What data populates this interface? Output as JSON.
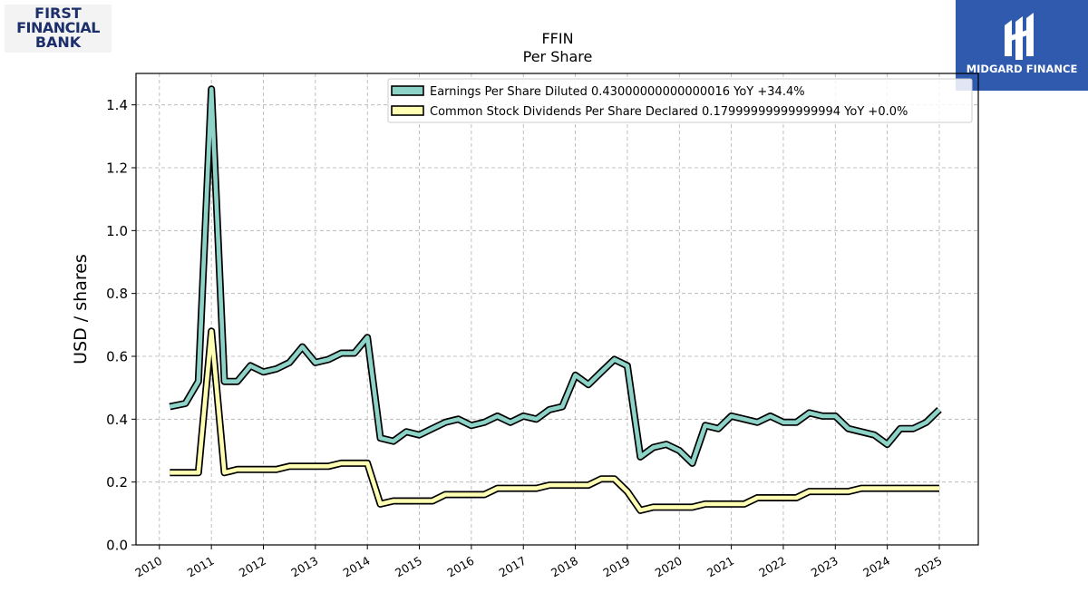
{
  "branding": {
    "left_logo": [
      "FIRST",
      "FINANCIAL",
      "BANK"
    ],
    "right_logo": "MIDGARD FINANCE"
  },
  "chart_data": {
    "type": "line",
    "title": "FFIN",
    "subtitle": "Per  Share",
    "xlabel": "",
    "ylabel": "USD / shares",
    "xlim": [
      2009.55,
      2025.75
    ],
    "ylim": [
      0.0,
      1.5
    ],
    "yticks": [
      0.0,
      0.2,
      0.4,
      0.6,
      0.8,
      1.0,
      1.2,
      1.4
    ],
    "ytick_labels": [
      "0.0",
      "0.2",
      "0.4",
      "0.6",
      "0.8",
      "1.0",
      "1.2",
      "1.4"
    ],
    "xticks": [
      2010,
      2011,
      2012,
      2013,
      2014,
      2015,
      2016,
      2017,
      2018,
      2019,
      2020,
      2021,
      2022,
      2023,
      2024,
      2025
    ],
    "xtick_labels": [
      "2010",
      "2011",
      "2012",
      "2013",
      "2014",
      "2015",
      "2016",
      "2017",
      "2018",
      "2019",
      "2020",
      "2021",
      "2022",
      "2023",
      "2024",
      "2025"
    ],
    "grid": true,
    "legend_position": "top-right",
    "x": [
      2010.2,
      2010.5,
      2010.75,
      2011.0,
      2011.25,
      2011.5,
      2011.75,
      2012.0,
      2012.25,
      2012.5,
      2012.75,
      2013.0,
      2013.25,
      2013.5,
      2013.75,
      2014.0,
      2014.25,
      2014.5,
      2014.75,
      2015.0,
      2015.25,
      2015.5,
      2015.75,
      2016.0,
      2016.25,
      2016.5,
      2016.75,
      2017.0,
      2017.25,
      2017.5,
      2017.75,
      2018.0,
      2018.25,
      2018.5,
      2018.75,
      2019.0,
      2019.25,
      2019.5,
      2019.75,
      2020.0,
      2020.25,
      2020.5,
      2020.75,
      2021.0,
      2021.25,
      2021.5,
      2021.75,
      2022.0,
      2022.25,
      2022.5,
      2022.75,
      2023.0,
      2023.25,
      2023.5,
      2023.75,
      2024.0,
      2024.25,
      2024.5,
      2024.75,
      2025.0
    ],
    "series": [
      {
        "name": "Earnings Per Share Diluted",
        "legend": "Earnings Per Share Diluted  0.43000000000000016 YoY +34.4%",
        "color": "#8dd3c7",
        "values": [
          0.44,
          0.45,
          0.52,
          1.45,
          0.52,
          0.52,
          0.57,
          0.55,
          0.56,
          0.58,
          0.63,
          0.58,
          0.59,
          0.61,
          0.61,
          0.66,
          0.34,
          0.33,
          0.36,
          0.35,
          0.37,
          0.39,
          0.4,
          0.38,
          0.39,
          0.41,
          0.39,
          0.41,
          0.4,
          0.43,
          0.44,
          0.54,
          0.51,
          0.55,
          0.59,
          0.57,
          0.28,
          0.31,
          0.32,
          0.3,
          0.26,
          0.38,
          0.37,
          0.41,
          0.4,
          0.39,
          0.41,
          0.39,
          0.39,
          0.42,
          0.41,
          0.41,
          0.37,
          0.36,
          0.35,
          0.32,
          0.37,
          0.37,
          0.39,
          0.43
        ]
      },
      {
        "name": "Common Stock Dividends Per Share Declared",
        "legend": "Common Stock Dividends Per Share Declared  0.17999999999999994 YoY +0.0%",
        "color": "#ffffb3",
        "values": [
          0.23,
          0.23,
          0.23,
          0.68,
          0.23,
          0.24,
          0.24,
          0.24,
          0.24,
          0.25,
          0.25,
          0.25,
          0.25,
          0.26,
          0.26,
          0.26,
          0.13,
          0.14,
          0.14,
          0.14,
          0.14,
          0.16,
          0.16,
          0.16,
          0.16,
          0.18,
          0.18,
          0.18,
          0.18,
          0.19,
          0.19,
          0.19,
          0.19,
          0.21,
          0.21,
          0.17,
          0.11,
          0.12,
          0.12,
          0.12,
          0.12,
          0.13,
          0.13,
          0.13,
          0.13,
          0.15,
          0.15,
          0.15,
          0.15,
          0.17,
          0.17,
          0.17,
          0.17,
          0.18,
          0.18,
          0.18,
          0.18,
          0.18,
          0.18,
          0.18
        ]
      }
    ]
  }
}
